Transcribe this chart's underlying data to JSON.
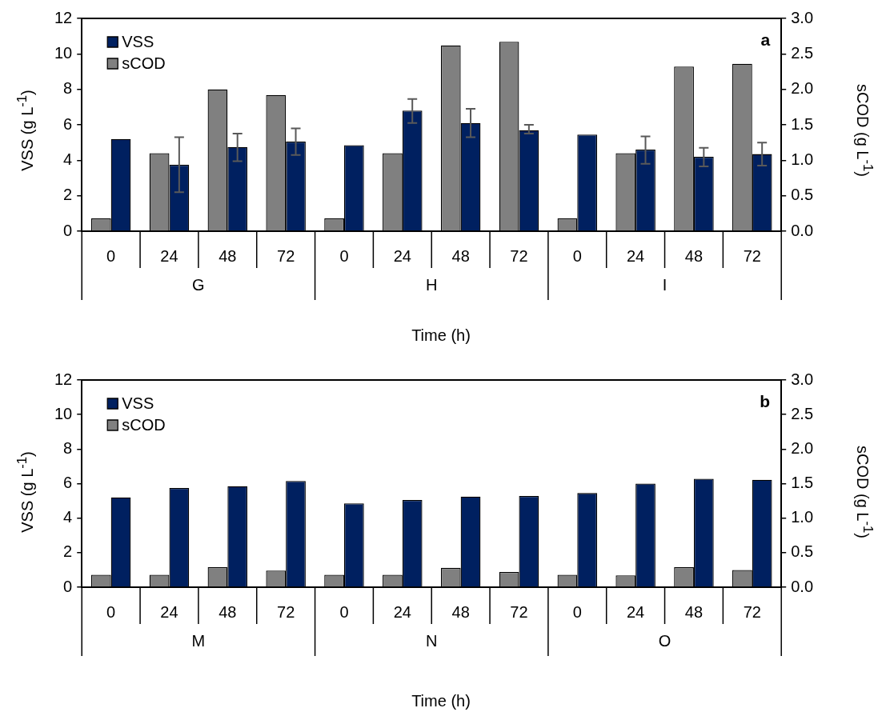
{
  "chart_data": [
    {
      "type": "bar",
      "xlabel": "Time (h)",
      "ylabel": "VSS (g L$^{-1}$)",
      "y2label": "sCOD (g L$^{-1}$)",
      "legend": "top left",
      "categories": [
        "0",
        "24",
        "48",
        "72",
        "0",
        "24",
        "48",
        "72",
        "0",
        "24",
        "48",
        "72"
      ],
      "series": [
        {
          "name": "VSS",
          "color": "#002060",
          "values": [
            5.2,
            3.75,
            4.75,
            5.05,
            4.85,
            6.8,
            6.1,
            5.7,
            5.45,
            4.6,
            4.2,
            4.35
          ],
          "errors": [
            null,
            [
              2.2,
              5.3
            ],
            [
              3.95,
              5.5
            ],
            [
              4.3,
              5.8
            ],
            null,
            [
              6.1,
              7.45
            ],
            [
              5.3,
              6.9
            ],
            [
              5.5,
              6.0
            ],
            null,
            [
              3.8,
              5.35
            ],
            [
              3.65,
              4.7
            ],
            [
              3.7,
              5.0
            ]
          ]
        },
        {
          "name": "sCOD",
          "color": "#808080",
          "axis": "y2",
          "values": [
            0.18,
            1.1,
            2.0,
            1.92,
            0.18,
            1.1,
            2.62,
            2.67,
            0.18,
            1.1,
            2.32,
            2.36
          ]
        }
      ],
      "ylim": [
        0,
        12
      ],
      "yticks": [
        0,
        2,
        4,
        6,
        8,
        10,
        12
      ],
      "y2lim": [
        0,
        3
      ],
      "y2ticks": [
        {
          "value": 0,
          "label": "0.0"
        },
        {
          "value": 0.5,
          "label": "0.5"
        },
        {
          "value": 1,
          "label": "1.0"
        },
        {
          "value": 1.5,
          "label": "1.5"
        },
        {
          "value": 2,
          "label": "2.0"
        },
        {
          "value": 2.5,
          "label": "2.5"
        },
        {
          "value": 3,
          "label": "3.0"
        }
      ],
      "annotations": [
        "a",
        "G",
        "H",
        "I"
      ]
    },
    {
      "type": "bar",
      "xlabel": "Time (h)",
      "ylabel": "VSS (g L$^{-1}$)",
      "y2label": "sCOD (g L$^{-1}$)",
      "legend": "top left",
      "categories": [
        "0",
        "24",
        "48",
        "72",
        "0",
        "24",
        "48",
        "72",
        "0",
        "24",
        "48",
        "72"
      ],
      "series": [
        {
          "name": "VSS",
          "color": "#002060",
          "values": [
            5.2,
            5.75,
            5.85,
            6.15,
            4.85,
            5.05,
            5.25,
            5.28,
            5.45,
            6.0,
            6.28,
            6.22
          ]
        },
        {
          "name": "sCOD",
          "color": "#808080",
          "axis": "y2",
          "values": [
            0.18,
            0.18,
            0.29,
            0.24,
            0.18,
            0.18,
            0.28,
            0.22,
            0.18,
            0.17,
            0.29,
            0.25
          ]
        }
      ],
      "ylim": [
        0,
        12
      ],
      "yticks": [
        0,
        2,
        4,
        6,
        8,
        10,
        12
      ],
      "y2lim": [
        0,
        3
      ],
      "y2ticks": [
        {
          "value": 0,
          "label": "0.0"
        },
        {
          "value": 0.5,
          "label": "0.5"
        },
        {
          "value": 1,
          "label": "1.0"
        },
        {
          "value": 1.5,
          "label": "1.5"
        },
        {
          "value": 2,
          "label": "2.0"
        },
        {
          "value": 2.5,
          "label": "2.5"
        },
        {
          "value": 3,
          "label": "3.0"
        }
      ],
      "annotations": [
        "b",
        "M",
        "N",
        "O"
      ]
    }
  ]
}
